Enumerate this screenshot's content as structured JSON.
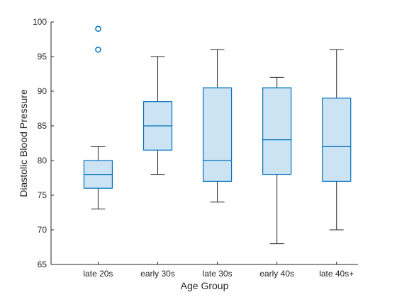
{
  "chart_data": {
    "type": "box",
    "title": "",
    "xlabel": "Age Group",
    "ylabel": "Diastolic Blood Pressure",
    "ylim": [
      65,
      100
    ],
    "yticks": [
      65,
      70,
      75,
      80,
      85,
      90,
      95,
      100
    ],
    "grid": false,
    "categories": [
      "late 20s",
      "early 30s",
      "late 30s",
      "early 40s",
      "late 40s+"
    ],
    "boxes": [
      {
        "category": "late 20s",
        "whisker_low": 73,
        "q1": 76,
        "median": 78,
        "q3": 80,
        "whisker_high": 82,
        "outliers": [
          96,
          99
        ]
      },
      {
        "category": "early 30s",
        "whisker_low": 78,
        "q1": 81.5,
        "median": 85,
        "q3": 88.5,
        "whisker_high": 95,
        "outliers": []
      },
      {
        "category": "late 30s",
        "whisker_low": 74,
        "q1": 77,
        "median": 80,
        "q3": 90.5,
        "whisker_high": 96,
        "outliers": []
      },
      {
        "category": "early 40s",
        "whisker_low": 68,
        "q1": 78,
        "median": 83,
        "q3": 90.5,
        "whisker_high": 92,
        "outliers": []
      },
      {
        "category": "late 40s+",
        "whisker_low": 70,
        "q1": 77,
        "median": 82,
        "q3": 89,
        "whisker_high": 96,
        "outliers": []
      }
    ],
    "colors": {
      "box_edge": "#0072BD",
      "box_fill": "#CCE3F3",
      "whisker": "#262626",
      "axis": "#262626",
      "outlier": "#0072BD"
    }
  }
}
